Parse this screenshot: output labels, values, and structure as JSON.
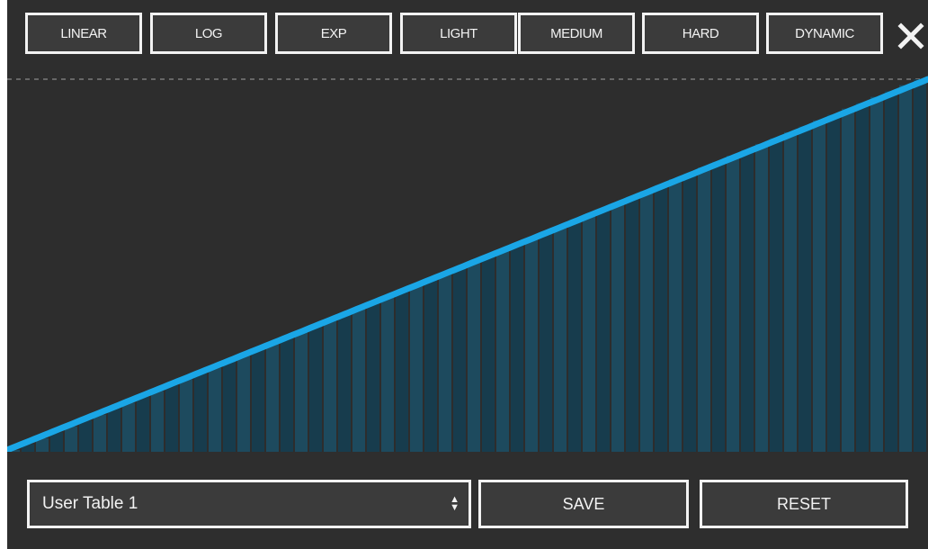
{
  "presets": [
    "LINEAR",
    "LOG",
    "EXP",
    "LIGHT",
    "MEDIUM",
    "HARD",
    "DYNAMIC"
  ],
  "close_icon": "close-icon",
  "curve": {
    "type": "linear",
    "bar_count": 64,
    "start_level": 0.0,
    "end_level": 1.0,
    "line_color": "#1aa6e6",
    "bar_color": "#1d4a5e",
    "bar_alt_color": "#173c4d"
  },
  "table_select": {
    "value": "User Table 1",
    "arrows_icon": "up-down-arrows-icon"
  },
  "actions": {
    "save_label": "SAVE",
    "reset_label": "RESET"
  }
}
